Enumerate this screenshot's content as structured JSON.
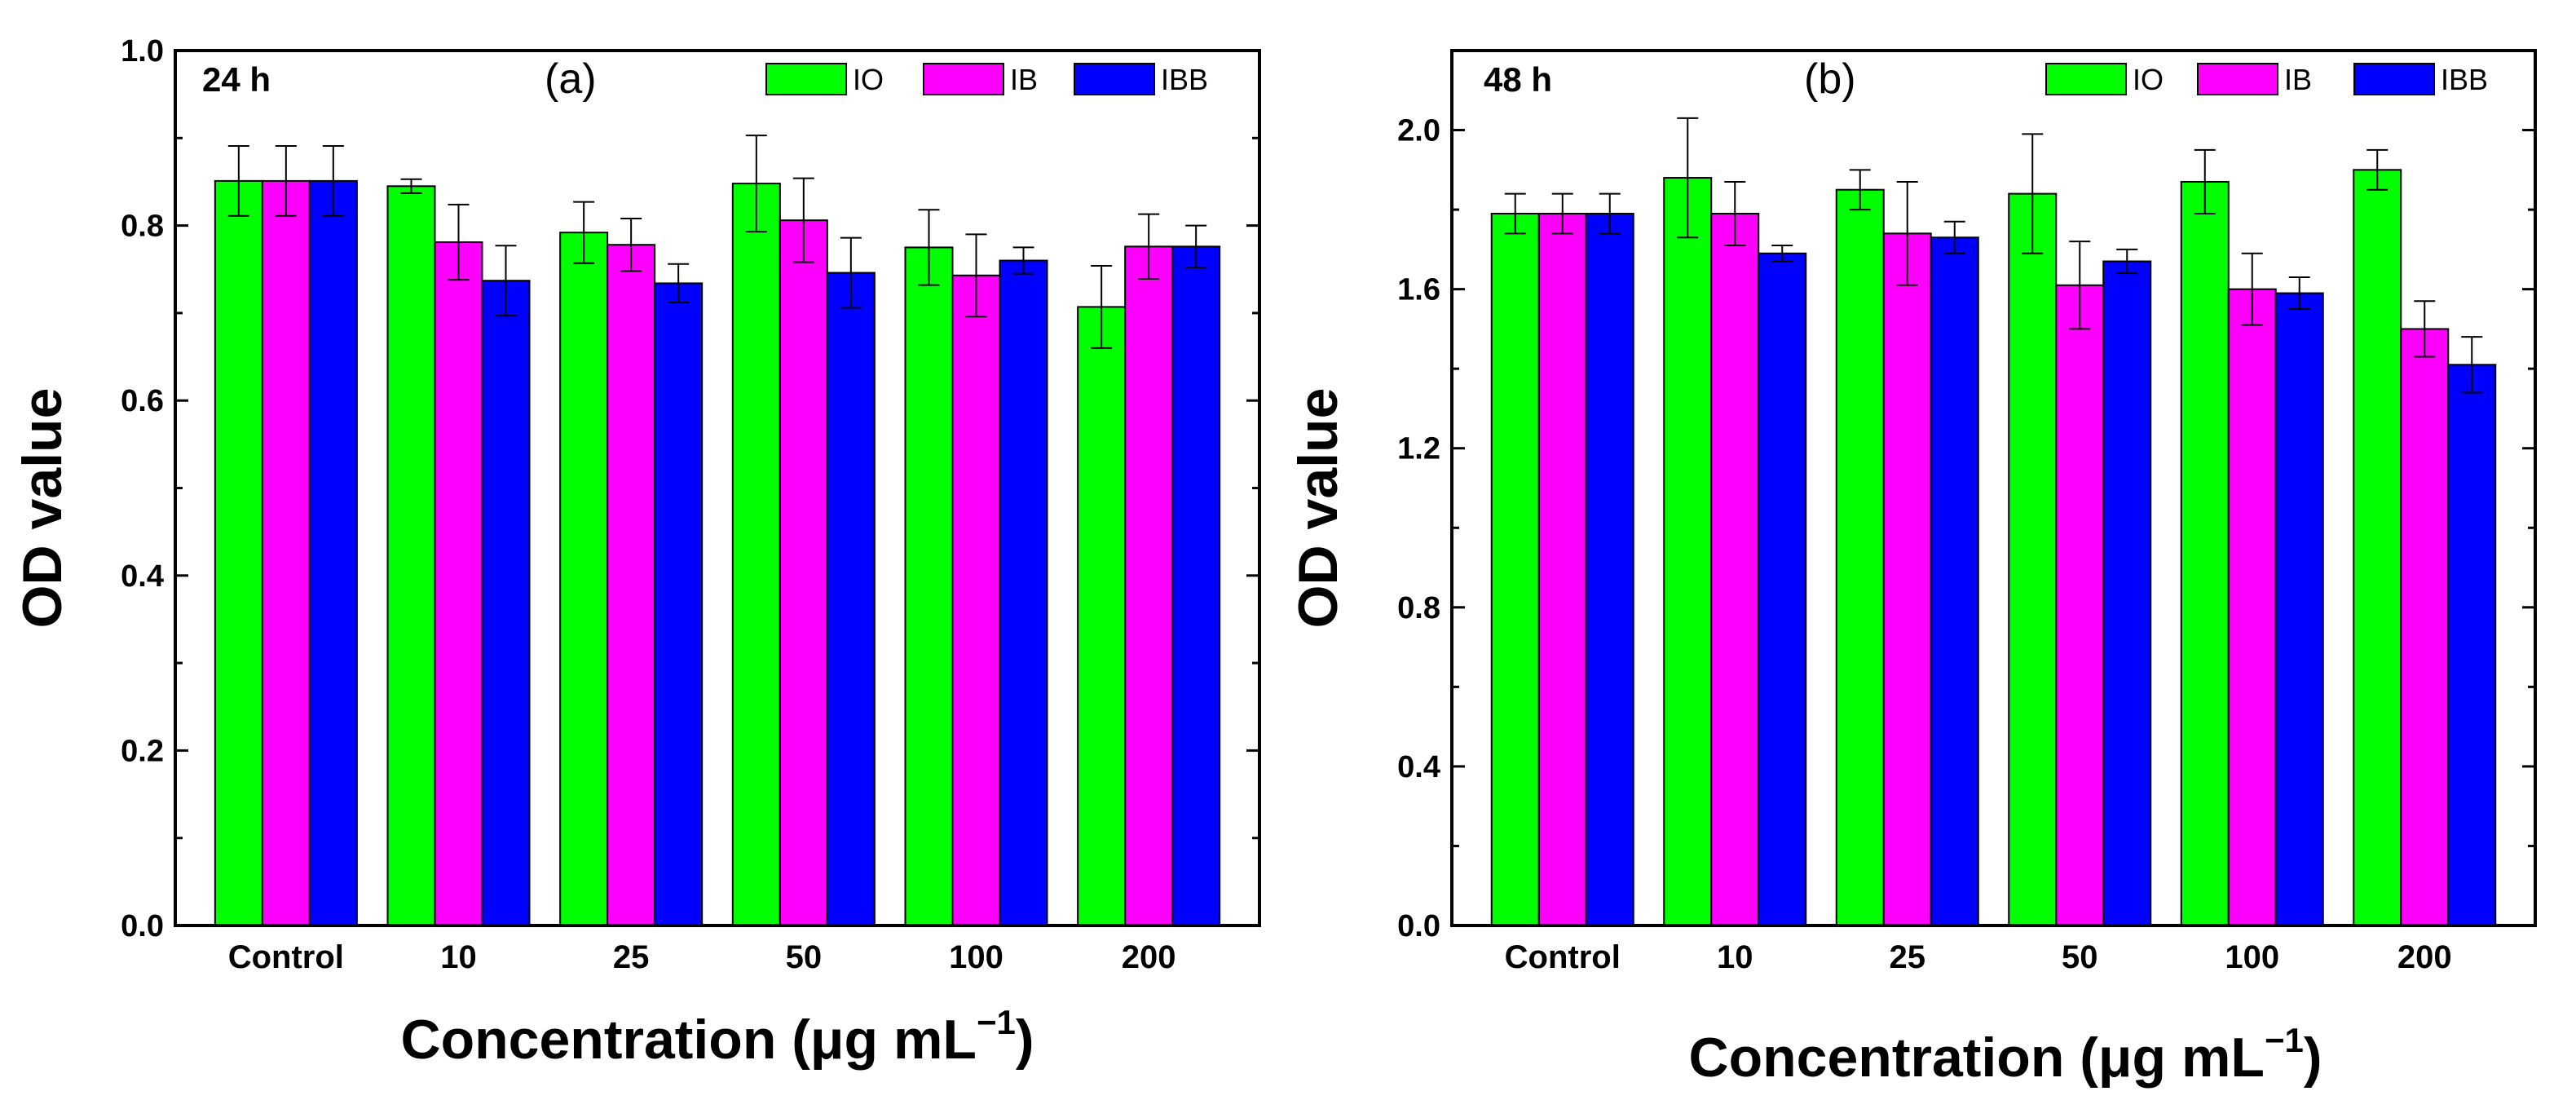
{
  "chart_data": [
    {
      "type": "bar",
      "panel_label": "(a)",
      "time_label": "24 h",
      "ylabel": "OD value",
      "xlabel": "Concentration (μg mL⁻¹)",
      "xlabel_parts": {
        "main": "Concentration (",
        "mu": "μ",
        "unit": "g mL",
        "sup": "−1",
        "close": ")"
      },
      "ylim": [
        0,
        1.0
      ],
      "yticks": [
        "0.0",
        "0.2",
        "0.4",
        "0.6",
        "0.8",
        "1.0"
      ],
      "categories": [
        "Control",
        "10",
        "25",
        "50",
        "100",
        "200"
      ],
      "legend_position": "top-right",
      "series": [
        {
          "name": "IO",
          "color": "#00ff00",
          "values": [
            0.851,
            0.845,
            0.792,
            0.848,
            0.775,
            0.707
          ],
          "errors": [
            0.04,
            0.008,
            0.035,
            0.055,
            0.043,
            0.047
          ]
        },
        {
          "name": "IB",
          "color": "#ff00ff",
          "values": [
            0.851,
            0.781,
            0.778,
            0.806,
            0.743,
            0.776
          ],
          "errors": [
            0.04,
            0.043,
            0.03,
            0.048,
            0.047,
            0.037
          ]
        },
        {
          "name": "IBB",
          "color": "#0000ff",
          "values": [
            0.851,
            0.737,
            0.734,
            0.746,
            0.76,
            0.776
          ],
          "errors": [
            0.04,
            0.04,
            0.022,
            0.04,
            0.015,
            0.024
          ]
        }
      ]
    },
    {
      "type": "bar",
      "panel_label": "(b)",
      "time_label": "48 h",
      "ylabel": "OD value",
      "xlabel": "Concentration (μg mL⁻¹)",
      "xlabel_parts": {
        "main": "Concentration (",
        "mu": "μ",
        "unit": "g mL",
        "sup": "−1",
        "close": ")"
      },
      "ylim": [
        0,
        2.2
      ],
      "yticks": [
        "0.0",
        "0.4",
        "0.8",
        "1.2",
        "1.6",
        "2.0"
      ],
      "categories": [
        "Control",
        "10",
        "25",
        "50",
        "100",
        "200"
      ],
      "legend_position": "top-right",
      "series": [
        {
          "name": "IO",
          "color": "#00ff00",
          "values": [
            1.79,
            1.88,
            1.85,
            1.84,
            1.87,
            1.9
          ],
          "errors": [
            0.05,
            0.15,
            0.05,
            0.15,
            0.08,
            0.05
          ]
        },
        {
          "name": "IB",
          "color": "#ff00ff",
          "values": [
            1.79,
            1.79,
            1.74,
            1.61,
            1.6,
            1.5
          ],
          "errors": [
            0.05,
            0.08,
            0.13,
            0.11,
            0.09,
            0.07
          ]
        },
        {
          "name": "IBB",
          "color": "#0000ff",
          "values": [
            1.79,
            1.69,
            1.73,
            1.67,
            1.59,
            1.41
          ],
          "errors": [
            0.05,
            0.02,
            0.04,
            0.03,
            0.04,
            0.07
          ]
        }
      ]
    }
  ]
}
